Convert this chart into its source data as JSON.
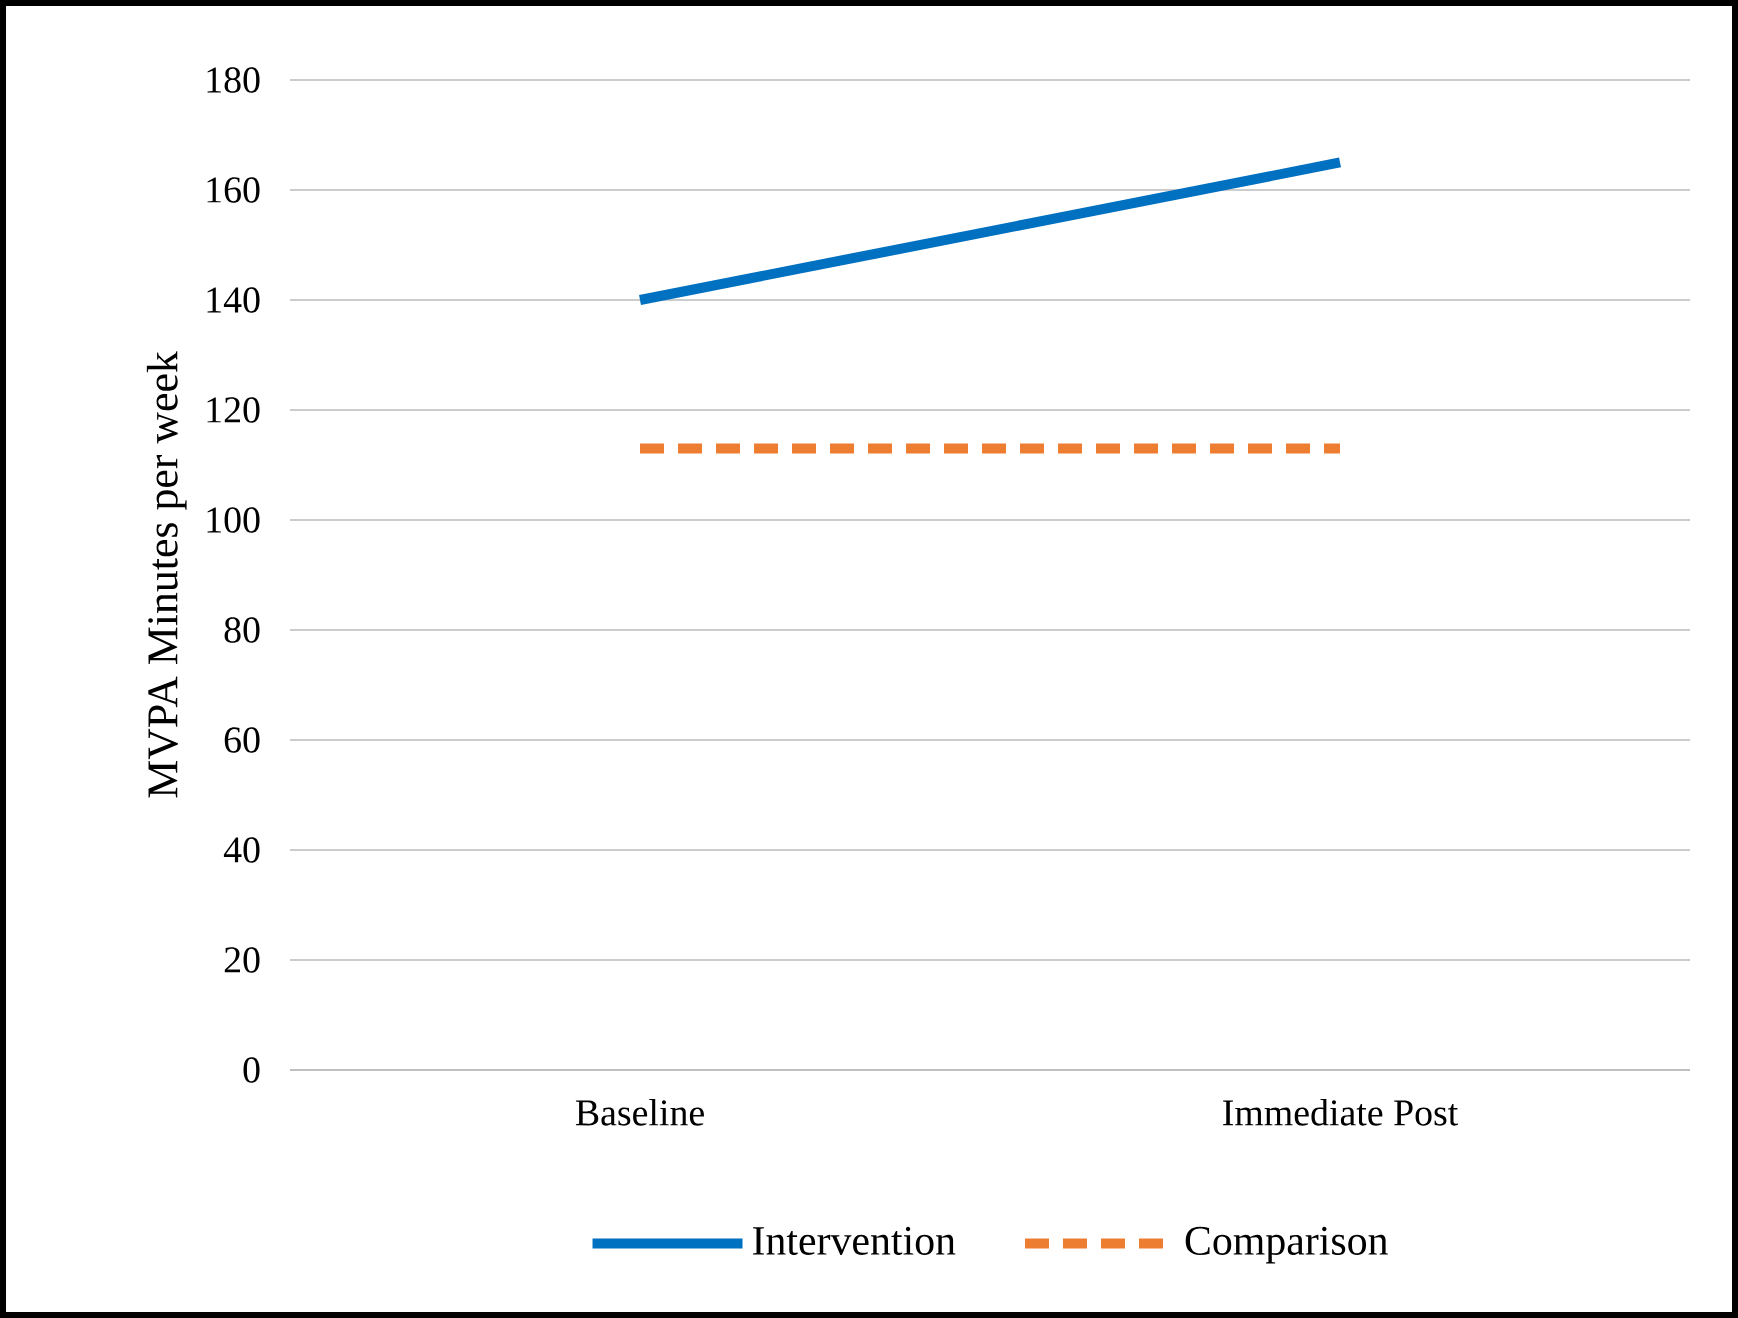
{
  "chart_data": {
    "type": "line",
    "categories": [
      "Baseline",
      "Immediate Post"
    ],
    "ylabel": "MVPA Minutes per week",
    "ylim": [
      0,
      180
    ],
    "yticks": [
      0,
      20,
      40,
      60,
      80,
      100,
      120,
      140,
      160,
      180
    ],
    "grid": "y",
    "legend": "bottom",
    "series": [
      {
        "name": "Intervention",
        "color": "#0070c0",
        "values": [
          140,
          165
        ],
        "line_style": "solid"
      },
      {
        "name": "Comparison",
        "color": "#ed7d31",
        "values": [
          113,
          113
        ],
        "line_style": "dashed"
      }
    ]
  }
}
